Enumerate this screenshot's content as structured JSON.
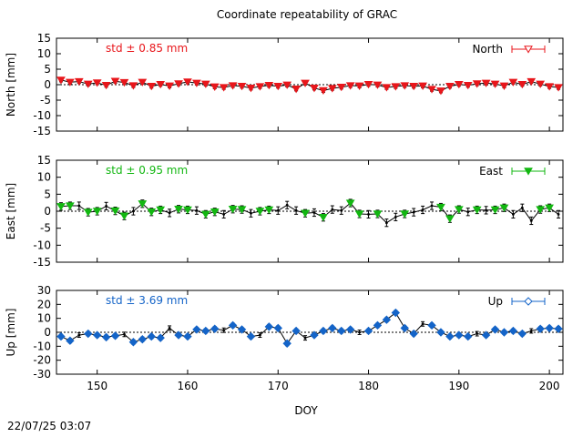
{
  "chart_data": {
    "type": "line",
    "title": "Coordinate repeatability of GRAC",
    "xlabel": "DOY",
    "xlim": [
      145.5,
      201.5
    ],
    "x_ticks": [
      150,
      160,
      170,
      180,
      190,
      200
    ],
    "grid": false,
    "legend_placement": "top-right",
    "panels": [
      {
        "key": "north",
        "name": "North",
        "ylabel": "North [mm]",
        "ylim": [
          -15,
          15
        ],
        "y_ticks": [
          -15,
          -10,
          -5,
          0,
          5,
          10,
          15
        ],
        "std_label": "std ± 0.85 mm",
        "color": "#e8161b",
        "marker": "triangle-down-filled",
        "legend_marker": "triangle-down-open",
        "err": 0.6,
        "x": [
          146,
          147,
          148,
          149,
          150,
          151,
          152,
          153,
          154,
          155,
          156,
          157,
          158,
          159,
          160,
          161,
          162,
          163,
          164,
          165,
          166,
          167,
          168,
          169,
          170,
          171,
          172,
          173,
          174,
          175,
          176,
          177,
          178,
          179,
          180,
          181,
          182,
          183,
          184,
          185,
          186,
          187,
          188,
          189,
          190,
          191,
          192,
          193,
          194,
          195,
          196,
          197,
          198,
          199,
          200,
          201
        ],
        "y": [
          1.5,
          0.8,
          1.0,
          0.2,
          0.6,
          -0.2,
          1.1,
          0.7,
          -0.3,
          0.8,
          -0.5,
          0.1,
          -0.4,
          0.3,
          0.9,
          0.5,
          0.2,
          -0.7,
          -0.9,
          -0.3,
          -0.5,
          -1.1,
          -0.6,
          -0.2,
          -0.5,
          -0.1,
          -1.4,
          0.5,
          -1.1,
          -1.9,
          -1.2,
          -0.8,
          -0.3,
          -0.4,
          0.1,
          -0.1,
          -0.9,
          -0.6,
          -0.3,
          -0.5,
          -0.4,
          -1.5,
          -2.0,
          -0.5,
          0.1,
          -0.2,
          0.3,
          0.5,
          0.2,
          -0.4,
          0.8,
          0.1,
          1.0,
          0.2,
          -0.6,
          -0.9
        ],
        "black_points": []
      },
      {
        "key": "east",
        "name": "East",
        "ylabel": "East [mm]",
        "ylim": [
          -15,
          15
        ],
        "y_ticks": [
          -15,
          -10,
          -5,
          0,
          5,
          10,
          15
        ],
        "std_label": "std ± 0.95 mm",
        "color": "#12b711",
        "marker": "triangle-down-filled",
        "legend_marker": "triangle-down-filled",
        "err": 1.1,
        "x": [
          146,
          147,
          148,
          149,
          150,
          151,
          152,
          153,
          154,
          155,
          156,
          157,
          158,
          159,
          160,
          161,
          162,
          163,
          164,
          165,
          166,
          167,
          168,
          169,
          170,
          171,
          172,
          173,
          174,
          175,
          176,
          177,
          178,
          179,
          180,
          181,
          182,
          183,
          184,
          185,
          186,
          187,
          188,
          189,
          190,
          191,
          192,
          193,
          194,
          195,
          196,
          197,
          198,
          199,
          200,
          201
        ],
        "y": [
          1.4,
          1.6,
          1.6,
          -0.3,
          0.0,
          1.5,
          0.1,
          -1.4,
          0.0,
          2.2,
          -0.2,
          0.4,
          -0.5,
          0.6,
          0.4,
          0.2,
          -0.9,
          -0.2,
          -0.9,
          0.6,
          0.5,
          -0.6,
          0.0,
          0.4,
          0.2,
          1.8,
          0.2,
          -0.6,
          -0.4,
          -1.8,
          0.5,
          0.2,
          2.4,
          -0.8,
          -0.9,
          -0.8,
          -3.4,
          -1.7,
          -0.8,
          -0.3,
          0.4,
          1.6,
          1.2,
          -2.2,
          0.5,
          -0.2,
          0.4,
          0.3,
          0.4,
          1.0,
          -0.9,
          1.0,
          -2.8,
          0.5,
          1.0,
          -0.9
        ],
        "black_points": [
          2,
          5,
          8,
          12,
          15,
          18,
          21,
          24,
          25,
          26,
          28,
          30,
          31,
          34,
          36,
          37,
          39,
          40,
          41,
          45,
          47,
          50,
          51,
          52,
          55
        ]
      },
      {
        "key": "up",
        "name": "Up",
        "ylabel": "Up [mm]",
        "ylim": [
          -30,
          30
        ],
        "y_ticks": [
          -30,
          -20,
          -10,
          0,
          10,
          20,
          30
        ],
        "std_label": "std ± 3.69 mm",
        "color": "#1464c8",
        "marker": "diamond-filled",
        "legend_marker": "diamond-open",
        "err": 1.6,
        "x": [
          146,
          147,
          148,
          149,
          150,
          151,
          152,
          153,
          154,
          155,
          156,
          157,
          158,
          159,
          160,
          161,
          162,
          163,
          164,
          165,
          166,
          167,
          168,
          169,
          170,
          171,
          172,
          173,
          174,
          175,
          176,
          177,
          178,
          179,
          180,
          181,
          182,
          183,
          184,
          185,
          186,
          187,
          188,
          189,
          190,
          191,
          192,
          193,
          194,
          195,
          196,
          197,
          198,
          199,
          200,
          201
        ],
        "y": [
          -3.0,
          -6.0,
          -2.0,
          -1.0,
          -2.0,
          -3.5,
          -2.5,
          -1.5,
          -7.0,
          -5.0,
          -3.0,
          -4.0,
          3.0,
          -2.0,
          -3.0,
          2.0,
          1.0,
          2.5,
          1.5,
          5.0,
          2.0,
          -3.0,
          -2.0,
          4.0,
          3.0,
          -8.0,
          1.0,
          -4.0,
          -2.0,
          1.0,
          3.0,
          1.0,
          2.0,
          0.0,
          1.0,
          5.0,
          9.0,
          14.0,
          3.0,
          -1.0,
          6.0,
          5.0,
          0.0,
          -3.0,
          -2.0,
          -3.0,
          -1.0,
          -2.0,
          2.0,
          0.0,
          1.0,
          -1.0,
          1.0,
          2.5,
          3.0,
          2.5
        ],
        "black_points": [
          2,
          7,
          12,
          18,
          22,
          27,
          33,
          40,
          46,
          52
        ]
      }
    ],
    "footer_timestamp": "22/07/25 03:07"
  }
}
